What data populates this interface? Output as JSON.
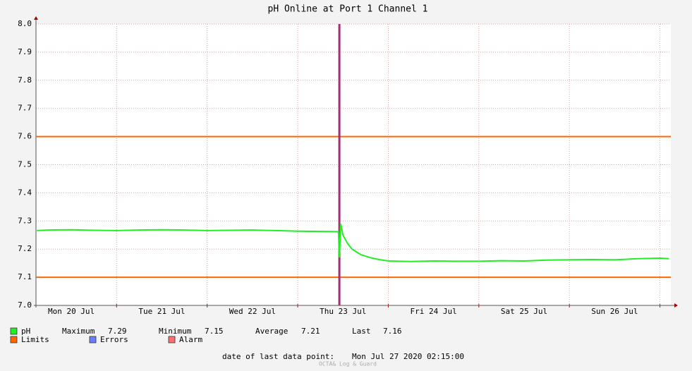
{
  "chart_data": {
    "type": "line",
    "title": "pH Online at Port 1 Channel 1",
    "xlim": [
      20.11,
      27.12
    ],
    "xticks": [
      {
        "value": 20.5,
        "label": "Mon 20 Jul"
      },
      {
        "value": 21.5,
        "label": "Tue 21 Jul"
      },
      {
        "value": 22.5,
        "label": "Wed 22 Jul"
      },
      {
        "value": 23.5,
        "label": "Thu 23 Jul"
      },
      {
        "value": 24.5,
        "label": "Fri 24 Jul"
      },
      {
        "value": 25.5,
        "label": "Sat 25 Jul"
      },
      {
        "value": 26.5,
        "label": "Sun 26 Jul"
      }
    ],
    "xgrid": [
      21,
      22,
      23,
      24,
      25,
      26,
      27
    ],
    "ylim": [
      7,
      8
    ],
    "yticks": [
      {
        "value": 7,
        "label": "7.0"
      },
      7.1,
      7.2,
      7.3,
      7.4,
      7.5,
      7.6,
      7.7,
      7.8,
      7.9,
      {
        "value": 8,
        "label": "8.0"
      }
    ],
    "grid": true,
    "series": [
      {
        "name": "pH",
        "color": "#22ee22",
        "x": [
          20.12,
          20.25,
          20.5,
          20.75,
          21,
          21.25,
          21.5,
          21.75,
          22,
          22.25,
          22.5,
          22.75,
          23,
          23.25,
          23.45,
          23.46,
          23.475,
          23.5,
          23.55,
          23.6,
          23.7,
          23.8,
          23.9,
          24,
          24.25,
          24.5,
          24.75,
          25,
          25.25,
          25.5,
          25.75,
          26,
          26.25,
          26.5,
          26.75,
          27,
          27.1
        ],
        "values": [
          7.266,
          7.268,
          7.269,
          7.267,
          7.266,
          7.268,
          7.269,
          7.268,
          7.266,
          7.267,
          7.268,
          7.266,
          7.264,
          7.263,
          7.262,
          7.17,
          7.29,
          7.25,
          7.22,
          7.2,
          7.18,
          7.17,
          7.163,
          7.158,
          7.156,
          7.158,
          7.157,
          7.157,
          7.159,
          7.158,
          7.161,
          7.162,
          7.163,
          7.162,
          7.166,
          7.168,
          7.166
        ],
        "stats": [
          {
            "label": "Maximum",
            "value": 7.29
          },
          {
            "label": "Minimum",
            "value": 7.15
          },
          {
            "label": "Average",
            "value": 7.21
          },
          {
            "label": "Last",
            "value": 7.16
          }
        ]
      }
    ],
    "limits": {
      "name": "Limits",
      "color": "#ff6600",
      "values": [
        7.1,
        7.6
      ]
    },
    "event": {
      "x": 23.46,
      "color": "#a0306e"
    },
    "legend_extra": [
      {
        "name": "Errors",
        "color": "#6a7fff"
      },
      {
        "name": "Alarm",
        "color": "#ff6f6f"
      }
    ],
    "footer": {
      "label": "date of last data point:",
      "value": "Mon Jul 27 2020 02:15:00"
    },
    "watermark": "OCTA& Log & Guard"
  }
}
